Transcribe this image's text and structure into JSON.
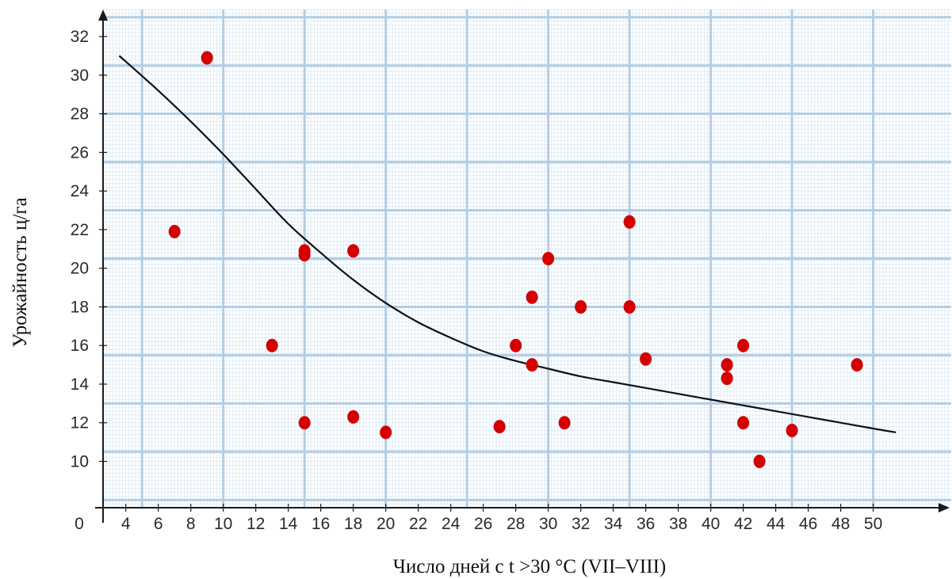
{
  "chart_data": {
    "type": "scatter",
    "xlabel": "Число дней с t >30 °C (VII–VIII)",
    "ylabel": "Урожайность ц/га",
    "origin_label": "0",
    "x_ticks": [
      4,
      6,
      8,
      10,
      12,
      14,
      16,
      18,
      20,
      22,
      24,
      26,
      28,
      30,
      32,
      34,
      36,
      38,
      40,
      42,
      44,
      46,
      48,
      50
    ],
    "y_ticks": [
      10,
      12,
      14,
      16,
      18,
      20,
      22,
      24,
      26,
      28,
      30,
      32
    ],
    "xlim": [
      2.6,
      54.8
    ],
    "ylim": [
      7.6,
      33.4
    ],
    "grid": true,
    "points": [
      {
        "x": 7,
        "y": 21.9
      },
      {
        "x": 9,
        "y": 30.9
      },
      {
        "x": 13,
        "y": 16.0
      },
      {
        "x": 15,
        "y": 20.9
      },
      {
        "x": 15,
        "y": 20.7
      },
      {
        "x": 15,
        "y": 12.0
      },
      {
        "x": 18,
        "y": 20.9
      },
      {
        "x": 18,
        "y": 12.3
      },
      {
        "x": 20,
        "y": 11.5
      },
      {
        "x": 27,
        "y": 11.8
      },
      {
        "x": 28,
        "y": 16.0
      },
      {
        "x": 29,
        "y": 18.5
      },
      {
        "x": 29,
        "y": 15.0
      },
      {
        "x": 30,
        "y": 20.5
      },
      {
        "x": 31,
        "y": 12.0
      },
      {
        "x": 32,
        "y": 18.0
      },
      {
        "x": 35,
        "y": 22.4
      },
      {
        "x": 35,
        "y": 18.0
      },
      {
        "x": 36,
        "y": 15.3
      },
      {
        "x": 41,
        "y": 15.0
      },
      {
        "x": 41,
        "y": 14.3
      },
      {
        "x": 42,
        "y": 16.0
      },
      {
        "x": 42,
        "y": 12.0
      },
      {
        "x": 43,
        "y": 10.0
      },
      {
        "x": 45,
        "y": 11.6
      },
      {
        "x": 49,
        "y": 15.0
      }
    ],
    "trend_curve": {
      "x": [
        3.6,
        6,
        8,
        10,
        12,
        14,
        16,
        18,
        20,
        22,
        24,
        26,
        28,
        30,
        32,
        34,
        36,
        38,
        40,
        42,
        44,
        46,
        48,
        50,
        51.4
      ],
      "y": [
        31.0,
        29.2,
        27.6,
        25.9,
        24.1,
        22.3,
        20.8,
        19.4,
        18.2,
        17.2,
        16.4,
        15.7,
        15.2,
        14.8,
        14.4,
        14.1,
        13.8,
        13.5,
        13.2,
        12.9,
        12.6,
        12.3,
        12.0,
        11.7,
        11.5
      ]
    },
    "colors": {
      "points": "#d40000",
      "curve": "#111111",
      "grid_major": "#b3cde3",
      "grid_minor": "#dce9f5",
      "axis": "#1a1a1a"
    }
  }
}
